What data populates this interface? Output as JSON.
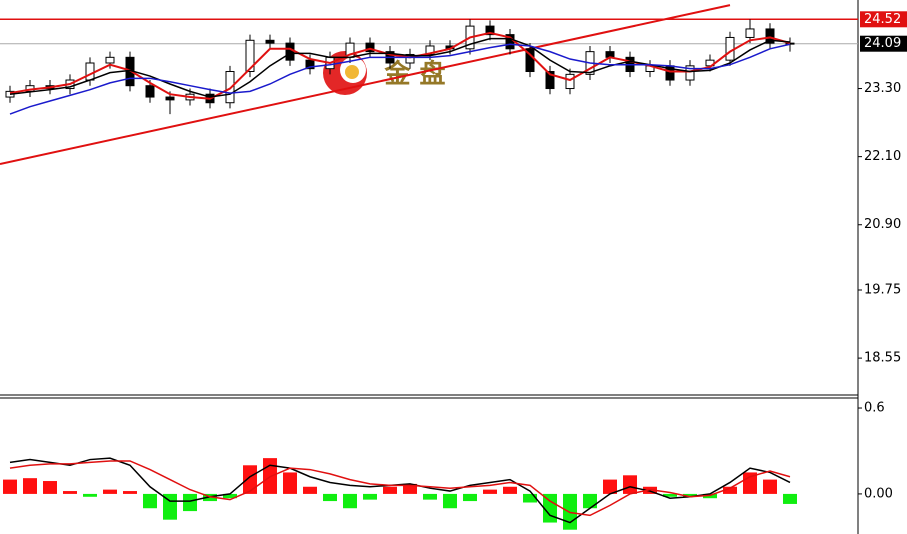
{
  "watermark": "金 盘",
  "chart_data": [
    {
      "type": "candlestick",
      "open": [
        23.15,
        23.25,
        23.35,
        23.3,
        23.45,
        23.75,
        23.85,
        23.35,
        23.15,
        23.1,
        23.2,
        23.05,
        23.6,
        24.15,
        24.1,
        23.8,
        23.65,
        23.85,
        24.1,
        23.95,
        23.75,
        23.9,
        24.05,
        24.0,
        24.4,
        24.25,
        24.0,
        23.6,
        23.3,
        23.55,
        23.95,
        23.85,
        23.6,
        23.7,
        23.45,
        23.7,
        23.8,
        24.2,
        24.35,
        24.1
      ],
      "high": [
        23.35,
        23.45,
        23.45,
        23.55,
        23.85,
        23.95,
        23.95,
        23.45,
        23.25,
        23.3,
        23.3,
        23.7,
        24.25,
        24.25,
        24.2,
        23.9,
        23.95,
        24.2,
        24.2,
        24.05,
        24.0,
        24.15,
        24.15,
        24.52,
        24.5,
        24.35,
        24.1,
        23.7,
        23.65,
        24.05,
        24.05,
        23.95,
        23.8,
        23.8,
        23.8,
        23.9,
        24.3,
        24.52,
        24.45,
        24.2
      ],
      "low": [
        23.05,
        23.15,
        23.2,
        23.2,
        23.35,
        23.65,
        23.25,
        23.05,
        22.85,
        23.0,
        22.95,
        22.95,
        23.5,
        24.0,
        23.7,
        23.55,
        23.55,
        23.75,
        23.85,
        23.65,
        23.65,
        23.8,
        23.9,
        23.9,
        24.15,
        23.9,
        23.5,
        23.2,
        23.2,
        23.45,
        23.75,
        23.5,
        23.5,
        23.35,
        23.35,
        23.6,
        23.7,
        24.1,
        24.0,
        23.95
      ],
      "close": [
        23.25,
        23.35,
        23.3,
        23.45,
        23.75,
        23.85,
        23.35,
        23.15,
        23.1,
        23.2,
        23.05,
        23.6,
        24.15,
        24.1,
        23.8,
        23.65,
        23.85,
        24.1,
        23.95,
        23.75,
        23.9,
        24.05,
        24.0,
        24.4,
        24.25,
        24.0,
        23.6,
        23.3,
        23.55,
        23.95,
        23.85,
        23.6,
        23.7,
        23.45,
        23.7,
        23.8,
        24.2,
        24.35,
        24.1,
        24.09
      ],
      "series": [
        {
          "color": "#e01010",
          "values": [
            23.22,
            23.28,
            23.32,
            23.38,
            23.55,
            23.72,
            23.62,
            23.4,
            23.2,
            23.15,
            23.12,
            23.3,
            23.65,
            24.0,
            24.0,
            23.82,
            23.75,
            23.9,
            24.0,
            23.9,
            23.85,
            23.92,
            24.0,
            24.2,
            24.28,
            24.2,
            23.9,
            23.55,
            23.45,
            23.65,
            23.85,
            23.78,
            23.7,
            23.6,
            23.6,
            23.68,
            23.95,
            24.15,
            24.2,
            24.1
          ]
        },
        {
          "color": "#000000",
          "values": [
            23.2,
            23.24,
            23.28,
            23.33,
            23.45,
            23.58,
            23.62,
            23.52,
            23.38,
            23.25,
            23.15,
            23.2,
            23.42,
            23.7,
            23.92,
            23.92,
            23.85,
            23.85,
            23.92,
            23.92,
            23.88,
            23.88,
            23.95,
            24.08,
            24.18,
            24.18,
            24.05,
            23.8,
            23.6,
            23.58,
            23.7,
            23.78,
            23.72,
            23.65,
            23.6,
            23.62,
            23.75,
            23.98,
            24.15,
            24.12
          ]
        },
        {
          "color": "#1a1acc",
          "values": [
            22.85,
            22.98,
            23.08,
            23.18,
            23.28,
            23.4,
            23.48,
            23.48,
            23.42,
            23.35,
            23.28,
            23.22,
            23.25,
            23.38,
            23.55,
            23.68,
            23.72,
            23.78,
            23.85,
            23.85,
            23.85,
            23.85,
            23.88,
            23.95,
            24.02,
            24.08,
            24.05,
            23.95,
            23.82,
            23.75,
            23.72,
            23.72,
            23.72,
            23.7,
            23.65,
            23.65,
            23.72,
            23.85,
            24.0,
            24.08
          ]
        }
      ],
      "trendline": {
        "color": "#e01010",
        "points": [
          [
            0,
            21.97
          ],
          [
            36,
            24.77
          ]
        ]
      },
      "price_lines": [
        {
          "value": 24.52,
          "color": "#e01010"
        },
        {
          "value": 24.09,
          "color": "#000000"
        }
      ],
      "ylim": [
        17.9,
        24.86
      ],
      "yticks": [
        {
          "value": 23.3,
          "label": "23.30"
        },
        {
          "value": 22.1,
          "label": "22.10"
        },
        {
          "value": 20.9,
          "label": "20.90"
        },
        19.75,
        18.55
      ]
    },
    {
      "type": "macd",
      "values": [
        0.1,
        0.11,
        0.09,
        0.02,
        -0.02,
        0.03,
        0.02,
        -0.1,
        -0.18,
        -0.12,
        -0.05,
        -0.03,
        0.2,
        0.25,
        0.15,
        0.05,
        -0.05,
        -0.1,
        -0.04,
        0.05,
        0.07,
        -0.04,
        -0.1,
        -0.05,
        0.03,
        0.05,
        -0.06,
        -0.2,
        -0.25,
        -0.1,
        0.1,
        0.13,
        0.05,
        -0.02,
        -0.02,
        -0.03,
        0.05,
        0.15,
        0.1,
        -0.07
      ],
      "up_color": "#ff1010",
      "down_color": "#10ee10",
      "series": [
        {
          "color": "#000000",
          "values": [
            0.22,
            0.24,
            0.22,
            0.2,
            0.24,
            0.25,
            0.2,
            0.05,
            -0.05,
            -0.05,
            -0.02,
            0.0,
            0.12,
            0.2,
            0.18,
            0.12,
            0.08,
            0.06,
            0.05,
            0.06,
            0.07,
            0.04,
            0.02,
            0.06,
            0.08,
            0.1,
            0.02,
            -0.15,
            -0.2,
            -0.1,
            0.0,
            0.05,
            0.02,
            -0.03,
            -0.02,
            0.0,
            0.08,
            0.18,
            0.15,
            0.08
          ]
        },
        {
          "color": "#e01010",
          "values": [
            0.18,
            0.2,
            0.21,
            0.21,
            0.22,
            0.23,
            0.23,
            0.17,
            0.1,
            0.03,
            -0.02,
            -0.04,
            0.02,
            0.12,
            0.18,
            0.17,
            0.14,
            0.1,
            0.07,
            0.06,
            0.06,
            0.05,
            0.04,
            0.05,
            0.06,
            0.08,
            0.06,
            -0.05,
            -0.13,
            -0.15,
            -0.08,
            0.0,
            0.03,
            0.01,
            -0.02,
            -0.01,
            0.04,
            0.12,
            0.16,
            0.12
          ]
        }
      ],
      "ylim": [
        -0.28,
        0.67
      ],
      "yticks": [
        0.6,
        {
          "value": 0,
          "label": "0.00"
        }
      ]
    }
  ]
}
